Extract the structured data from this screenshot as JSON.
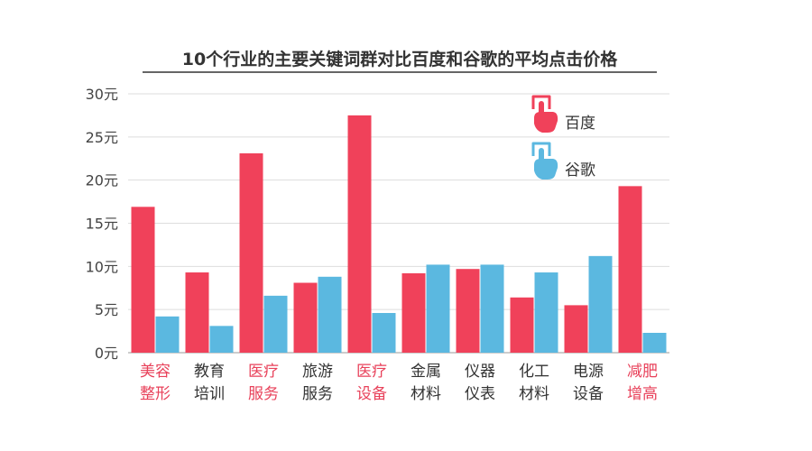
{
  "chart_data": {
    "type": "bar",
    "title": "10个行业的主要关键词群对比百度和谷歌的平均点击价格",
    "xlabel": "",
    "ylabel": "",
    "ylim": [
      0,
      30
    ],
    "yticks": [
      0,
      5,
      10,
      15,
      20,
      25,
      30
    ],
    "ytick_labels": [
      "0元",
      "5元",
      "10元",
      "15元",
      "20元",
      "25元",
      "30元"
    ],
    "grid": true,
    "legend_position": "top-right",
    "categories": [
      {
        "line1": "美容",
        "line2": "整形",
        "highlight": true
      },
      {
        "line1": "教育",
        "line2": "培训",
        "highlight": false
      },
      {
        "line1": "医疗",
        "line2": "服务",
        "highlight": true
      },
      {
        "line1": "旅游",
        "line2": "服务",
        "highlight": false
      },
      {
        "line1": "医疗",
        "line2": "设备",
        "highlight": true
      },
      {
        "line1": "金属",
        "line2": "材料",
        "highlight": false
      },
      {
        "line1": "仪器",
        "line2": "仪表",
        "highlight": false
      },
      {
        "line1": "化工",
        "line2": "材料",
        "highlight": false
      },
      {
        "line1": "电源",
        "line2": "设备",
        "highlight": false
      },
      {
        "line1": "减肥",
        "line2": "增高",
        "highlight": true
      }
    ],
    "series": [
      {
        "name": "百度",
        "color": "#f0415a",
        "icon": "hand-pointer-icon",
        "values": [
          16.9,
          9.3,
          23.1,
          8.1,
          27.5,
          9.2,
          9.7,
          6.4,
          5.5,
          19.3
        ]
      },
      {
        "name": "谷歌",
        "color": "#5bb8e0",
        "icon": "hand-pointer-icon",
        "values": [
          4.2,
          3.1,
          6.6,
          8.8,
          4.6,
          10.2,
          10.2,
          9.3,
          11.2,
          2.3
        ]
      }
    ],
    "colors": {
      "highlight_label": "#e8415a",
      "normal_label": "#333333",
      "grid": "#dddddd",
      "axis": "#999999"
    }
  }
}
